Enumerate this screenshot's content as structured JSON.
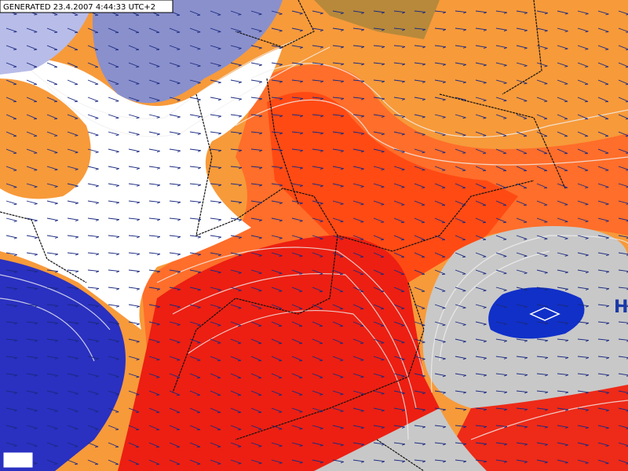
{
  "header": {
    "generated": "GENERATED 23.4.2007 4:44:33 UTC+2"
  },
  "pressure_centers": [
    {
      "label": "H"
    }
  ]
}
